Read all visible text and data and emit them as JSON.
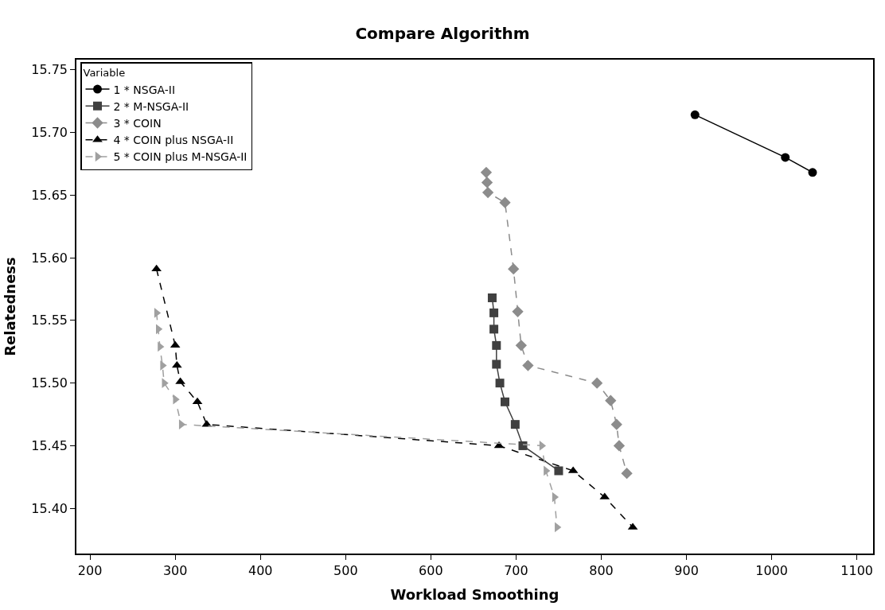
{
  "chart_data": {
    "type": "line",
    "title": "Compare Algorithm",
    "xlabel": "Workload Smoothing",
    "ylabel": "Relatedness",
    "legend_title": "Variable",
    "legend": "top left",
    "xlim": [
      184,
      1119
    ],
    "xticks": [
      200,
      300,
      400,
      500,
      600,
      700,
      800,
      900,
      1000,
      1100
    ],
    "ylim": [
      15.364,
      15.758
    ],
    "yticks": [
      {
        "value": 15.4,
        "label": "15.40"
      },
      {
        "value": 15.45,
        "label": "15.45"
      },
      {
        "value": 15.5,
        "label": "15.50"
      },
      {
        "value": 15.55,
        "label": "15.55"
      },
      {
        "value": 15.6,
        "label": "15.60"
      },
      {
        "value": 15.65,
        "label": "15.65"
      },
      {
        "value": 15.7,
        "label": "15.70"
      },
      {
        "value": 15.75,
        "label": "15.75"
      }
    ],
    "series": [
      {
        "name": "1 * NSGA-II",
        "color": "#000000",
        "marker": "circle",
        "line_style": "solid",
        "x": [
          910,
          1016,
          1048
        ],
        "values": [
          15.714,
          15.68,
          15.668
        ]
      },
      {
        "name": "2 * M-NSGA-II",
        "color": "#404040",
        "marker": "square",
        "line_style": "solid",
        "x": [
          672,
          674,
          674,
          677,
          677,
          681,
          687,
          699,
          708,
          750
        ],
        "values": [
          15.568,
          15.556,
          15.543,
          15.53,
          15.515,
          15.5,
          15.485,
          15.467,
          15.45,
          15.43
        ]
      },
      {
        "name": "3 * COIN",
        "color": "#8c8c8c",
        "marker": "diamond",
        "line_style": "dashed",
        "x": [
          665,
          666,
          667,
          687,
          697,
          702,
          706,
          714,
          795,
          811,
          818,
          821,
          830
        ],
        "values": [
          15.668,
          15.66,
          15.652,
          15.644,
          15.591,
          15.557,
          15.53,
          15.514,
          15.5,
          15.486,
          15.467,
          15.45,
          15.428
        ]
      },
      {
        "name": "4 * COIN plus NSGA-II",
        "color": "#000000",
        "marker": "triangle",
        "line_style": "dashed",
        "x": [
          278,
          null,
          300,
          302,
          306,
          326,
          337,
          680,
          767,
          804,
          837
        ],
        "values": [
          15.591,
          null,
          15.53,
          15.514,
          15.501,
          15.485,
          15.467,
          15.45,
          15.43,
          15.409,
          15.385
        ]
      },
      {
        "name": "5 * COIN plus M-NSGA-II",
        "color": "#a0a0a0",
        "marker": "triangle-right",
        "line_style": "dashed",
        "x": [
          278,
          280,
          282,
          285,
          287,
          300,
          307,
          730,
          735,
          745,
          748
        ],
        "values": [
          15.556,
          15.543,
          15.529,
          15.514,
          15.5,
          15.487,
          15.467,
          15.45,
          15.43,
          15.409,
          15.385
        ]
      }
    ]
  }
}
